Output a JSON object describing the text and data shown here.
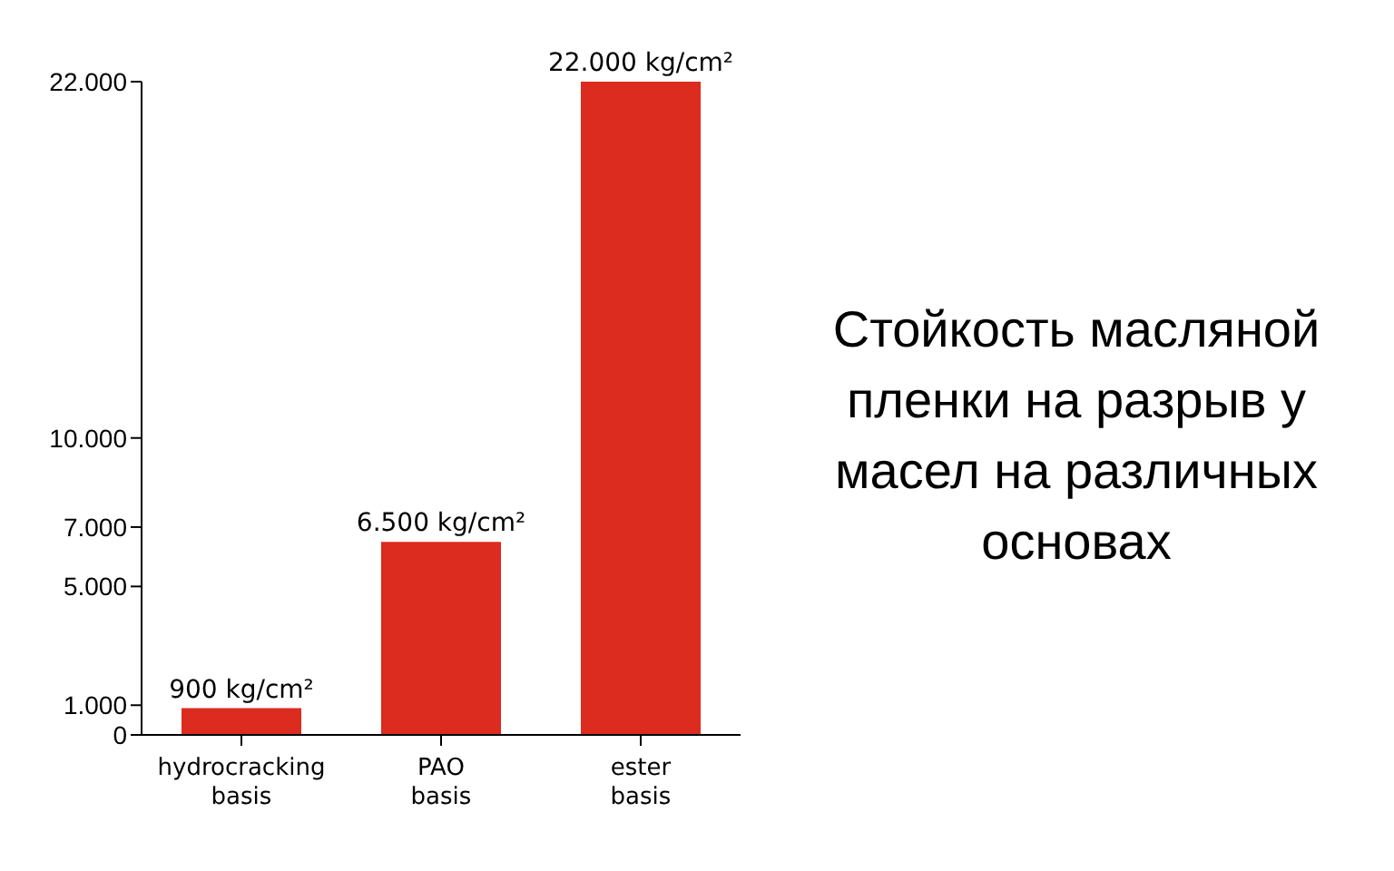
{
  "chart_data": {
    "type": "bar",
    "title": "Стойкость масляной пленки на разрыв у масел на различных основах",
    "categories": [
      "hydrocracking basis",
      "PAO basis",
      "ester basis"
    ],
    "values": [
      900,
      6500,
      22000
    ],
    "value_labels": [
      "900 kg/cm²",
      "6.500 kg/cm²",
      "22.000 kg/cm²"
    ],
    "color": "#dc2b1f",
    "ylim": [
      0,
      22000
    ],
    "yticks": [
      0,
      {
        "value": 1000,
        "label": "1.000"
      },
      {
        "value": 5000,
        "label": "5.000"
      },
      {
        "value": 7000,
        "label": "7.000"
      },
      {
        "value": 10000,
        "label": "10.000"
      },
      {
        "value": 22000,
        "label": "22.000"
      }
    ],
    "grid": false,
    "legend": false
  }
}
